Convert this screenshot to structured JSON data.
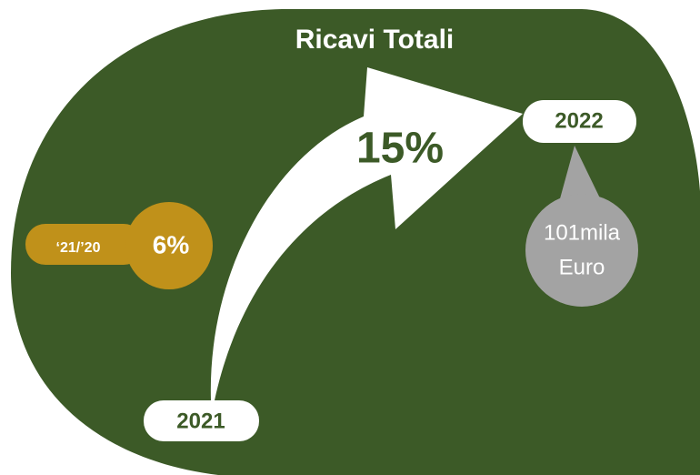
{
  "title": "Ricavi Totali",
  "growth": {
    "value": "15%"
  },
  "start": {
    "label": "2021"
  },
  "end": {
    "label": "2022",
    "amount": "101mila",
    "unit": "Euro"
  },
  "previous": {
    "label": "‘21/’20",
    "value": "6%"
  }
}
